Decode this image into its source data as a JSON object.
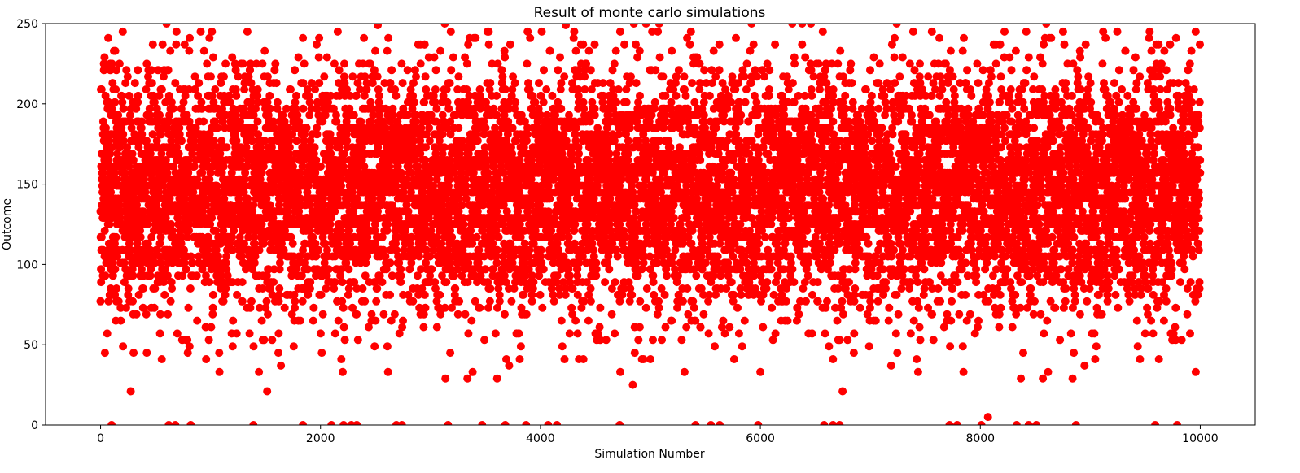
{
  "chart_data": {
    "type": "scatter",
    "title": "Result of monte carlo simulations",
    "xlabel": "Simulation Number",
    "ylabel": "Outcome",
    "xlim": [
      -500,
      10500
    ],
    "ylim": [
      0,
      250
    ],
    "xticks": [
      "0",
      "2000",
      "4000",
      "6000",
      "8000",
      "10000"
    ],
    "yticks": [
      "0",
      "50",
      "100",
      "150",
      "200",
      "250"
    ],
    "grid": false,
    "legend": "none",
    "n_points": 10000,
    "marker_color": "#ff0000",
    "distribution": {
      "mean": 145,
      "std": 38,
      "step": 4,
      "min": 0,
      "max": 250
    },
    "notable_points": [
      {
        "x": 0,
        "y": 77
      },
      {
        "x": 30,
        "y": 225
      },
      {
        "x": 40,
        "y": 45
      },
      {
        "x": 70,
        "y": 241
      },
      {
        "x": 60,
        "y": 57
      },
      {
        "x": 420,
        "y": 45
      },
      {
        "x": 300,
        "y": 45
      },
      {
        "x": 960,
        "y": 41
      },
      {
        "x": 1440,
        "y": 33
      },
      {
        "x": 1640,
        "y": 37
      },
      {
        "x": 3180,
        "y": 45
      },
      {
        "x": 3690,
        "y": 41
      },
      {
        "x": 4350,
        "y": 41
      },
      {
        "x": 4840,
        "y": 25
      },
      {
        "x": 5310,
        "y": 33
      },
      {
        "x": 6660,
        "y": 41
      },
      {
        "x": 7190,
        "y": 37
      },
      {
        "x": 8070,
        "y": 5
      },
      {
        "x": 8220,
        "y": 245
      },
      {
        "x": 8850,
        "y": 45
      },
      {
        "x": 8390,
        "y": 45
      },
      {
        "x": 2520,
        "y": 249
      },
      {
        "x": 4230,
        "y": 249
      },
      {
        "x": 3530,
        "y": 245
      },
      {
        "x": 7560,
        "y": 245
      },
      {
        "x": 9780,
        "y": 241
      },
      {
        "x": 1840,
        "y": 241
      },
      {
        "x": 810,
        "y": 241
      }
    ],
    "boundary_points": [
      {
        "x": 600,
        "y": 250
      },
      {
        "x": 3130,
        "y": 250
      },
      {
        "x": 4850,
        "y": 250
      },
      {
        "x": 4960,
        "y": 250
      },
      {
        "x": 5080,
        "y": 250
      },
      {
        "x": 5920,
        "y": 250
      },
      {
        "x": 6290,
        "y": 250
      },
      {
        "x": 6380,
        "y": 250
      },
      {
        "x": 6460,
        "y": 250
      },
      {
        "x": 7240,
        "y": 250
      },
      {
        "x": 8600,
        "y": 250
      },
      {
        "x": 100,
        "y": 0
      },
      {
        "x": 620,
        "y": 0
      },
      {
        "x": 680,
        "y": 0
      },
      {
        "x": 820,
        "y": 0
      },
      {
        "x": 1390,
        "y": 0
      },
      {
        "x": 1840,
        "y": 0
      },
      {
        "x": 2100,
        "y": 0
      },
      {
        "x": 2210,
        "y": 0
      },
      {
        "x": 2280,
        "y": 0
      },
      {
        "x": 2330,
        "y": 0
      },
      {
        "x": 2690,
        "y": 0
      },
      {
        "x": 2740,
        "y": 0
      },
      {
        "x": 3160,
        "y": 0
      },
      {
        "x": 3470,
        "y": 0
      },
      {
        "x": 3680,
        "y": 0
      },
      {
        "x": 3870,
        "y": 0
      },
      {
        "x": 4070,
        "y": 0
      },
      {
        "x": 4150,
        "y": 0
      },
      {
        "x": 4720,
        "y": 0
      },
      {
        "x": 5410,
        "y": 0
      },
      {
        "x": 5550,
        "y": 0
      },
      {
        "x": 5630,
        "y": 0
      },
      {
        "x": 5980,
        "y": 0
      },
      {
        "x": 6580,
        "y": 0
      },
      {
        "x": 6660,
        "y": 0
      },
      {
        "x": 6720,
        "y": 0
      },
      {
        "x": 7720,
        "y": 0
      },
      {
        "x": 7790,
        "y": 0
      },
      {
        "x": 8010,
        "y": 0
      },
      {
        "x": 8330,
        "y": 0
      },
      {
        "x": 8440,
        "y": 0
      },
      {
        "x": 8510,
        "y": 0
      },
      {
        "x": 8870,
        "y": 0
      },
      {
        "x": 9590,
        "y": 0
      },
      {
        "x": 9790,
        "y": 0
      }
    ]
  }
}
